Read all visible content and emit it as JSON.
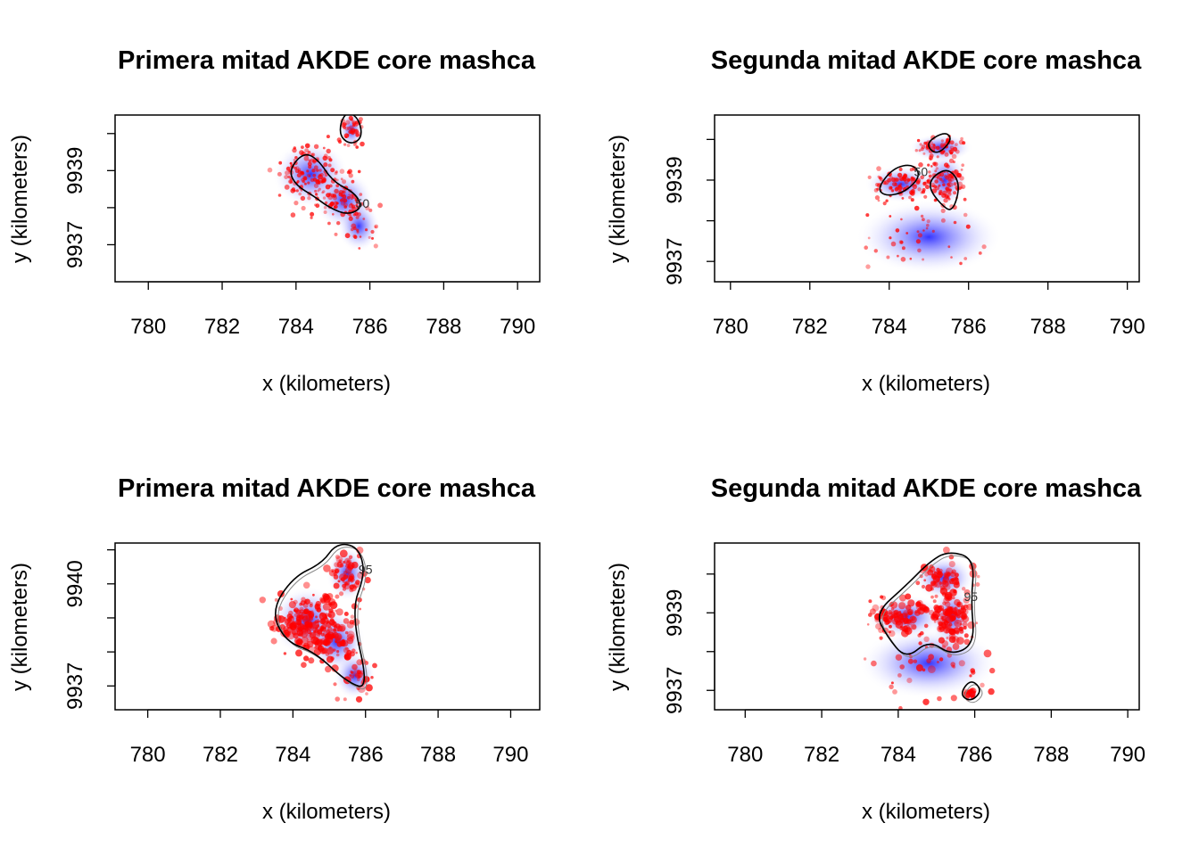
{
  "chart_data": [
    {
      "type": "scatter",
      "title": "Primera mitad AKDE core mashca",
      "xlabel": "x (kilometers)",
      "ylabel": "y (kilometers)",
      "xlim": [
        779.1,
        790.6
      ],
      "ylim": [
        9936.0,
        9940.5
      ],
      "xticks": [
        "780",
        "782",
        "784",
        "786",
        "788",
        "790"
      ],
      "yticks": [
        {
          "v": 9937,
          "label": "9937"
        },
        {
          "v": 9939,
          "label": "9939"
        }
      ],
      "ytick_marks": [
        9937,
        9938,
        9939,
        9940
      ],
      "contour_labels": [
        "50"
      ],
      "colors": {
        "density": "#0000ff",
        "points": "#ff0000",
        "contour": "#000000"
      },
      "clusters": [
        {
          "x": 784.4,
          "y": 9938.9,
          "sx": 0.45,
          "sy": 0.4,
          "n": 140
        },
        {
          "x": 785.3,
          "y": 9938.2,
          "sx": 0.35,
          "sy": 0.35,
          "n": 70
        },
        {
          "x": 785.5,
          "y": 9940.1,
          "sx": 0.15,
          "sy": 0.22,
          "n": 40
        },
        {
          "x": 785.7,
          "y": 9937.5,
          "sx": 0.25,
          "sy": 0.3,
          "n": 25
        }
      ],
      "contours": [
        [
          [
            783.8,
            9939.0
          ],
          [
            784.2,
            9939.5
          ],
          [
            784.6,
            9939.3
          ],
          [
            785.0,
            9938.7
          ],
          [
            785.6,
            9938.4
          ],
          [
            785.8,
            9938.0
          ],
          [
            785.4,
            9937.8
          ],
          [
            784.9,
            9938.0
          ],
          [
            784.5,
            9938.3
          ],
          [
            784.0,
            9938.6
          ]
        ],
        [
          [
            785.2,
            9940.3
          ],
          [
            785.4,
            9940.6
          ],
          [
            785.7,
            9940.4
          ],
          [
            785.8,
            9939.9
          ],
          [
            785.5,
            9939.7
          ],
          [
            785.2,
            9939.9
          ]
        ]
      ]
    },
    {
      "type": "scatter",
      "title": "Segunda mitad AKDE core mashca",
      "xlabel": "x (kilometers)",
      "ylabel": "y (kilometers)",
      "xlim": [
        779.6,
        790.3
      ],
      "ylim": [
        9936.5,
        9940.6
      ],
      "xticks": [
        "780",
        "782",
        "784",
        "786",
        "788",
        "790"
      ],
      "yticks": [
        {
          "v": 9937,
          "label": "9937"
        },
        {
          "v": 9939,
          "label": "9939"
        }
      ],
      "ytick_marks": [
        9937,
        9938,
        9939,
        9940
      ],
      "contour_labels": [
        "50"
      ],
      "colors": {
        "density": "#0000ff",
        "points": "#ff0000",
        "contour": "#000000"
      },
      "clusters": [
        {
          "x": 784.3,
          "y": 9938.9,
          "sx": 0.4,
          "sy": 0.2,
          "n": 90
        },
        {
          "x": 785.4,
          "y": 9939.0,
          "sx": 0.25,
          "sy": 0.3,
          "n": 90
        },
        {
          "x": 785.3,
          "y": 9939.8,
          "sx": 0.35,
          "sy": 0.15,
          "n": 60
        },
        {
          "x": 785.0,
          "y": 9937.6,
          "sx": 0.8,
          "sy": 0.4,
          "n": 40
        }
      ],
      "contours": [
        [
          [
            783.7,
            9938.8
          ],
          [
            784.1,
            9939.3
          ],
          [
            784.6,
            9939.4
          ],
          [
            784.8,
            9939.1
          ],
          [
            784.4,
            9938.7
          ],
          [
            783.9,
            9938.6
          ]
        ],
        [
          [
            785.1,
            9939.1
          ],
          [
            785.5,
            9939.3
          ],
          [
            785.8,
            9938.9
          ],
          [
            785.6,
            9938.2
          ],
          [
            785.3,
            9938.4
          ],
          [
            785.0,
            9938.8
          ]
        ],
        [
          [
            784.9,
            9939.9
          ],
          [
            785.4,
            9940.2
          ],
          [
            785.6,
            9940.0
          ],
          [
            785.2,
            9939.6
          ]
        ]
      ]
    },
    {
      "type": "scatter",
      "title": "Primera mitad AKDE core mashca",
      "xlabel": "x (kilometers)",
      "ylabel": "y (kilometers)",
      "xlim": [
        779.1,
        790.8
      ],
      "ylim": [
        9936.3,
        9941.2
      ],
      "xticks": [
        "780",
        "782",
        "784",
        "786",
        "788",
        "790"
      ],
      "yticks": [
        {
          "v": 9937,
          "label": "9937"
        },
        {
          "v": 9940,
          "label": "9940"
        }
      ],
      "ytick_marks": [
        9937,
        9938,
        9939,
        9940,
        9941
      ],
      "contour_labels": [
        "95"
      ],
      "colors": {
        "density": "#0000ff",
        "points": "#ff0000",
        "contour": "#000000"
      },
      "clusters": [
        {
          "x": 784.4,
          "y": 9938.9,
          "sx": 0.45,
          "sy": 0.45,
          "n": 180
        },
        {
          "x": 785.2,
          "y": 9938.3,
          "sx": 0.35,
          "sy": 0.4,
          "n": 90
        },
        {
          "x": 785.5,
          "y": 9940.3,
          "sx": 0.25,
          "sy": 0.35,
          "n": 60
        },
        {
          "x": 785.7,
          "y": 9937.3,
          "sx": 0.25,
          "sy": 0.3,
          "n": 30
        }
      ],
      "contours": [
        [
          [
            783.4,
            9939.2
          ],
          [
            784.0,
            9940.2
          ],
          [
            784.8,
            9940.6
          ],
          [
            785.2,
            9941.2
          ],
          [
            785.8,
            9941.1
          ],
          [
            786.0,
            9940.3
          ],
          [
            785.6,
            9939.2
          ],
          [
            786.1,
            9936.9
          ],
          [
            785.5,
            9937.1
          ],
          [
            784.6,
            9938.0
          ],
          [
            783.8,
            9938.3
          ]
        ]
      ]
    },
    {
      "type": "scatter",
      "title": "Segunda mitad AKDE core mashca",
      "xlabel": "x (kilometers)",
      "ylabel": "y (kilometers)",
      "xlim": [
        779.2,
        790.3
      ],
      "ylim": [
        9936.5,
        9940.8
      ],
      "xticks": [
        "780",
        "782",
        "784",
        "786",
        "788",
        "790"
      ],
      "yticks": [
        {
          "v": 9937,
          "label": "9937"
        },
        {
          "v": 9939,
          "label": "9939"
        }
      ],
      "ytick_marks": [
        9937,
        9938,
        9939,
        9940
      ],
      "contour_labels": [
        "95"
      ],
      "colors": {
        "density": "#0000ff",
        "points": "#ff0000",
        "contour": "#000000"
      },
      "clusters": [
        {
          "x": 784.2,
          "y": 9938.9,
          "sx": 0.45,
          "sy": 0.25,
          "n": 110
        },
        {
          "x": 785.4,
          "y": 9938.9,
          "sx": 0.25,
          "sy": 0.35,
          "n": 110
        },
        {
          "x": 785.2,
          "y": 9939.9,
          "sx": 0.35,
          "sy": 0.25,
          "n": 70
        },
        {
          "x": 784.8,
          "y": 9937.7,
          "sx": 0.8,
          "sy": 0.4,
          "n": 45
        },
        {
          "x": 785.9,
          "y": 9936.9,
          "sx": 0.08,
          "sy": 0.08,
          "n": 15
        }
      ],
      "contours": [
        [
          [
            783.4,
            9939.0
          ],
          [
            784.2,
            9939.7
          ],
          [
            784.8,
            9940.3
          ],
          [
            785.3,
            9940.6
          ],
          [
            786.0,
            9940.4
          ],
          [
            785.9,
            9939.3
          ],
          [
            786.0,
            9938.2
          ],
          [
            785.4,
            9937.9
          ],
          [
            784.8,
            9938.3
          ],
          [
            784.2,
            9937.8
          ],
          [
            783.7,
            9938.4
          ]
        ],
        [
          [
            785.6,
            9936.9
          ],
          [
            785.9,
            9937.3
          ],
          [
            786.2,
            9937.0
          ],
          [
            785.9,
            9936.7
          ]
        ]
      ]
    }
  ]
}
